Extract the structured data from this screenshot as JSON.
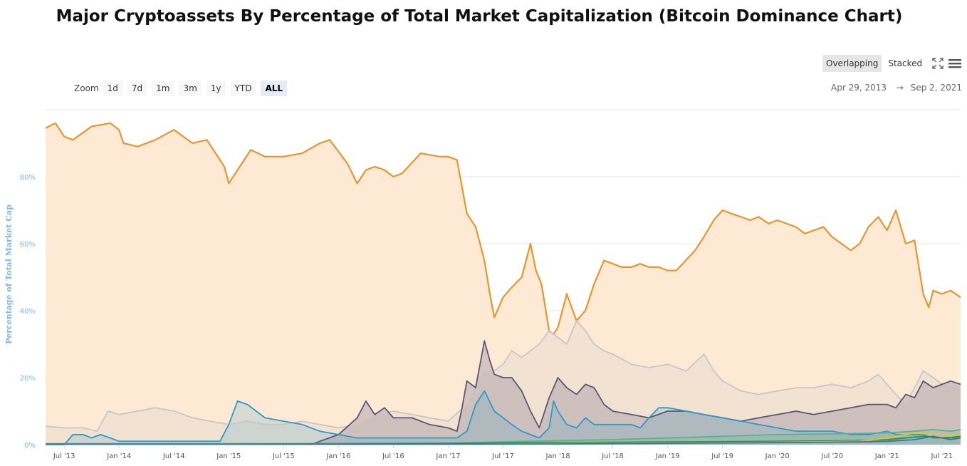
{
  "title": "Major Cryptoassets By Percentage of Total Market Capitalization (Bitcoin Dominance Chart)",
  "toolbar": {
    "overlapping": "Overlapping",
    "stacked": "Stacked",
    "fullscreen_icon": "fullscreen-icon",
    "menu_icon": "hamburger-menu-icon"
  },
  "zoom": {
    "label": "Zoom",
    "options": [
      "1d",
      "7d",
      "1m",
      "3m",
      "1y",
      "YTD",
      "ALL"
    ],
    "selected": "ALL"
  },
  "range": {
    "from": "Apr 29, 2013",
    "arrow": "→",
    "to": "Sep 2, 2021"
  },
  "chart_data": {
    "type": "area",
    "title": "Major Cryptoassets By Percentage of Total Market Capitalization (Bitcoin Dominance Chart)",
    "ylabel": "Percentage of Total Market Cap",
    "ylim": [
      0,
      100
    ],
    "xlim": [
      2013.33,
      2021.67
    ],
    "y_ticks": [
      {
        "v": 0,
        "label": "0%"
      },
      {
        "v": 20,
        "label": "20%"
      },
      {
        "v": 40,
        "label": "40%"
      },
      {
        "v": 60,
        "label": "60%"
      },
      {
        "v": 80,
        "label": "80%"
      }
    ],
    "x_ticks": [
      {
        "v": 2013.5,
        "label": "Jul '13"
      },
      {
        "v": 2014.0,
        "label": "Jan '14"
      },
      {
        "v": 2014.5,
        "label": "Jul '14"
      },
      {
        "v": 2015.0,
        "label": "Jan '15"
      },
      {
        "v": 2015.5,
        "label": "Jul '15"
      },
      {
        "v": 2016.0,
        "label": "Jan '16"
      },
      {
        "v": 2016.5,
        "label": "Jul '16"
      },
      {
        "v": 2017.0,
        "label": "Jan '17"
      },
      {
        "v": 2017.5,
        "label": "Jul '17"
      },
      {
        "v": 2018.0,
        "label": "Jan '18"
      },
      {
        "v": 2018.5,
        "label": "Jul '18"
      },
      {
        "v": 2019.0,
        "label": "Jan '19"
      },
      {
        "v": 2019.5,
        "label": "Jul '19"
      },
      {
        "v": 2020.0,
        "label": "Jan '20"
      },
      {
        "v": 2020.5,
        "label": "Jul '20"
      },
      {
        "v": 2021.0,
        "label": "Jan '21"
      },
      {
        "v": 2021.5,
        "label": "Jul '21"
      }
    ],
    "grid": true,
    "series": [
      {
        "color": "#e8962c",
        "fill": "#fde9d4",
        "x": [
          2013.33,
          2013.42,
          2013.5,
          2013.58,
          2013.75,
          2013.92,
          2014.0,
          2014.04,
          2014.17,
          2014.33,
          2014.5,
          2014.67,
          2014.8,
          2014.96,
          2015.0,
          2015.08,
          2015.2,
          2015.33,
          2015.5,
          2015.67,
          2015.83,
          2015.92,
          2016.08,
          2016.17,
          2016.25,
          2016.33,
          2016.42,
          2016.5,
          2016.58,
          2016.75,
          2016.92,
          2017.0,
          2017.08,
          2017.17,
          2017.25,
          2017.33,
          2017.38,
          2017.42,
          2017.5,
          2017.58,
          2017.67,
          2017.75,
          2017.8,
          2017.85,
          2017.92,
          2017.96,
          2018.0,
          2018.08,
          2018.17,
          2018.25,
          2018.33,
          2018.42,
          2018.5,
          2018.58,
          2018.67,
          2018.75,
          2018.83,
          2018.92,
          2019.0,
          2019.08,
          2019.25,
          2019.33,
          2019.42,
          2019.5,
          2019.58,
          2019.67,
          2019.75,
          2019.83,
          2019.92,
          2020.0,
          2020.17,
          2020.25,
          2020.42,
          2020.5,
          2020.67,
          2020.75,
          2020.83,
          2020.92,
          2021.0,
          2021.08,
          2021.17,
          2021.25,
          2021.33,
          2021.38,
          2021.42,
          2021.5,
          2021.58,
          2021.67
        ],
        "y": [
          94.5,
          96,
          92,
          91,
          95,
          96,
          94,
          90,
          89,
          91,
          94,
          90,
          91,
          83,
          78,
          82,
          88,
          86,
          86,
          87,
          90,
          91,
          84,
          78,
          82,
          83,
          82,
          80,
          81,
          87,
          86,
          86,
          85,
          69,
          65,
          55,
          45,
          38,
          44,
          47,
          50,
          60,
          52,
          48,
          34,
          33,
          35,
          45,
          37,
          40,
          48,
          55,
          54,
          53,
          53,
          54,
          53,
          53,
          52,
          52,
          58,
          62,
          67,
          70,
          69,
          68,
          67,
          68,
          66,
          67,
          65,
          63,
          65,
          62,
          58,
          60,
          65,
          68,
          64,
          70,
          60,
          61,
          45,
          41,
          46,
          45,
          46,
          44
        ]
      },
      {
        "color": "#c7c7c7",
        "fill": "rgba(220,215,205,0.35)",
        "x": [
          2013.33,
          2013.5,
          2013.67,
          2013.8,
          2013.9,
          2014.0,
          2014.17,
          2014.33,
          2014.5,
          2014.67,
          2014.83,
          2015.0,
          2015.17,
          2015.33,
          2015.5,
          2015.67,
          2015.83,
          2016.0,
          2016.17,
          2016.33,
          2016.5,
          2016.67,
          2016.83,
          2017.0,
          2017.17,
          2017.25,
          2017.33,
          2017.42,
          2017.5,
          2017.58,
          2017.67,
          2017.75,
          2017.83,
          2017.92,
          2018.0,
          2018.08,
          2018.17,
          2018.25,
          2018.33,
          2018.42,
          2018.5,
          2018.67,
          2018.83,
          2019.0,
          2019.17,
          2019.33,
          2019.42,
          2019.5,
          2019.67,
          2019.83,
          2020.0,
          2020.17,
          2020.33,
          2020.5,
          2020.67,
          2020.83,
          2020.92,
          2021.0,
          2021.08,
          2021.17,
          2021.25,
          2021.33,
          2021.42,
          2021.5,
          2021.58,
          2021.67
        ],
        "y": [
          5.5,
          5,
          5,
          4,
          10,
          9,
          10,
          11,
          10,
          8,
          7,
          6,
          7,
          6,
          6,
          7,
          6,
          5,
          6,
          9,
          10,
          9,
          8,
          7,
          12,
          18,
          22,
          22,
          24,
          28,
          26,
          28,
          30,
          34,
          32,
          30,
          37,
          34,
          30,
          28,
          27,
          24,
          23,
          24,
          22,
          27,
          22,
          19,
          16,
          15,
          16,
          17,
          17,
          18,
          17,
          19,
          21,
          18,
          15,
          12,
          17,
          22,
          20,
          18,
          18,
          17.5
        ]
      },
      {
        "color": "#595775",
        "fill": "rgba(140,130,150,0.35)",
        "x": [
          2015.75,
          2015.83,
          2016.0,
          2016.17,
          2016.25,
          2016.33,
          2016.42,
          2016.5,
          2016.67,
          2016.83,
          2017.0,
          2017.08,
          2017.12,
          2017.17,
          2017.25,
          2017.33,
          2017.38,
          2017.42,
          2017.5,
          2017.58,
          2017.67,
          2017.75,
          2017.83,
          2017.92,
          2018.0,
          2018.08,
          2018.17,
          2018.25,
          2018.33,
          2018.42,
          2018.5,
          2018.67,
          2018.83,
          2019.0,
          2019.17,
          2019.33,
          2019.5,
          2019.67,
          2019.83,
          2020.0,
          2020.17,
          2020.33,
          2020.5,
          2020.67,
          2020.83,
          2021.0,
          2021.08,
          2021.17,
          2021.25,
          2021.33,
          2021.42,
          2021.5,
          2021.58,
          2021.67
        ],
        "y": [
          0,
          1,
          3,
          8,
          13,
          9,
          11,
          8,
          8,
          6,
          5,
          4,
          10,
          19,
          17,
          31,
          25,
          21,
          20,
          20,
          16,
          10,
          5,
          14,
          20,
          17,
          15,
          18,
          17,
          12,
          10,
          9,
          8,
          10,
          10,
          9,
          8,
          7,
          8,
          9,
          10,
          9,
          10,
          11,
          12,
          12,
          11,
          15,
          14,
          19,
          17,
          18,
          19,
          18
        ]
      },
      {
        "color": "#2e9ac9",
        "fill": "rgba(46,154,201,0.18)",
        "x": [
          2013.33,
          2013.5,
          2013.58,
          2013.67,
          2013.75,
          2013.83,
          2013.92,
          2014.0,
          2014.08,
          2014.25,
          2014.5,
          2014.67,
          2014.83,
          2014.92,
          2015.0,
          2015.08,
          2015.17,
          2015.25,
          2015.33,
          2015.5,
          2015.67,
          2015.83,
          2016.0,
          2016.17,
          2016.33,
          2016.5,
          2016.67,
          2016.83,
          2017.0,
          2017.08,
          2017.17,
          2017.25,
          2017.33,
          2017.42,
          2017.5,
          2017.58,
          2017.67,
          2017.75,
          2017.83,
          2017.92,
          2017.96,
          2018.0,
          2018.08,
          2018.17,
          2018.25,
          2018.33,
          2018.42,
          2018.5,
          2018.58,
          2018.67,
          2018.75,
          2018.83,
          2018.92,
          2019.0,
          2019.17,
          2019.33,
          2019.5,
          2019.67,
          2019.83,
          2020.0,
          2020.17,
          2020.33,
          2020.5,
          2020.67,
          2020.83,
          2021.0,
          2021.08,
          2021.17,
          2021.25,
          2021.33,
          2021.42,
          2021.5,
          2021.58,
          2021.67
        ],
        "y": [
          0,
          0,
          3,
          3,
          2,
          3,
          2,
          1,
          1,
          1,
          1,
          1,
          1,
          1,
          6,
          13,
          12,
          10,
          8,
          7,
          6,
          4,
          3,
          2,
          2,
          2,
          2,
          2,
          2,
          2,
          4,
          12,
          16,
          10,
          8,
          6,
          4,
          3,
          2,
          5,
          13,
          10,
          6,
          5,
          8,
          6,
          6,
          6,
          6,
          6,
          5,
          8,
          11,
          11,
          10,
          9,
          8,
          7,
          6,
          5,
          4,
          4,
          4,
          3,
          3,
          4,
          3,
          3,
          3,
          3,
          2,
          2,
          2,
          2
        ]
      },
      {
        "color": "#58b38c",
        "fill": "rgba(88,179,140,0.2)",
        "x": [
          2013.33,
          2014.0,
          2015.0,
          2016.0,
          2017.0,
          2017.5,
          2018.0,
          2018.5,
          2019.0,
          2019.5,
          2020.0,
          2020.5,
          2021.0,
          2021.25,
          2021.42,
          2021.58,
          2021.67
        ],
        "y": [
          0.3,
          0.3,
          0.3,
          0.3,
          0.4,
          0.8,
          1.2,
          1.5,
          2.0,
          2.5,
          3.0,
          3.2,
          3.5,
          4.0,
          4.5,
          4.0,
          4.5
        ]
      },
      {
        "color": "#1f9c3a",
        "fill": "none",
        "x": [
          2013.33,
          2014.0,
          2015.0,
          2016.0,
          2017.0,
          2018.0,
          2019.0,
          2020.0,
          2020.67,
          2021.0,
          2021.33,
          2021.5,
          2021.67
        ],
        "y": [
          0.2,
          0.2,
          0.2,
          0.3,
          0.4,
          0.6,
          0.8,
          1.0,
          1.2,
          1.5,
          2.5,
          2.0,
          2.5
        ]
      },
      {
        "color": "#f0c419",
        "fill": "none",
        "x": [
          2013.33,
          2015.0,
          2017.0,
          2018.0,
          2019.0,
          2020.0,
          2020.75,
          2021.0,
          2021.25,
          2021.42,
          2021.58,
          2021.67
        ],
        "y": [
          0.1,
          0.1,
          0.1,
          0.3,
          0.5,
          0.7,
          1.0,
          2.0,
          3.5,
          3.0,
          2.5,
          3.0
        ]
      },
      {
        "color": "#3f6fb5",
        "fill": "none",
        "x": [
          2013.33,
          2016.0,
          2018.0,
          2019.0,
          2020.0,
          2020.75,
          2021.0,
          2021.25,
          2021.42,
          2021.58,
          2021.67
        ],
        "y": [
          0.1,
          0.1,
          0.2,
          0.4,
          0.6,
          0.8,
          1.0,
          1.5,
          2.5,
          1.5,
          2.0
        ]
      }
    ]
  }
}
